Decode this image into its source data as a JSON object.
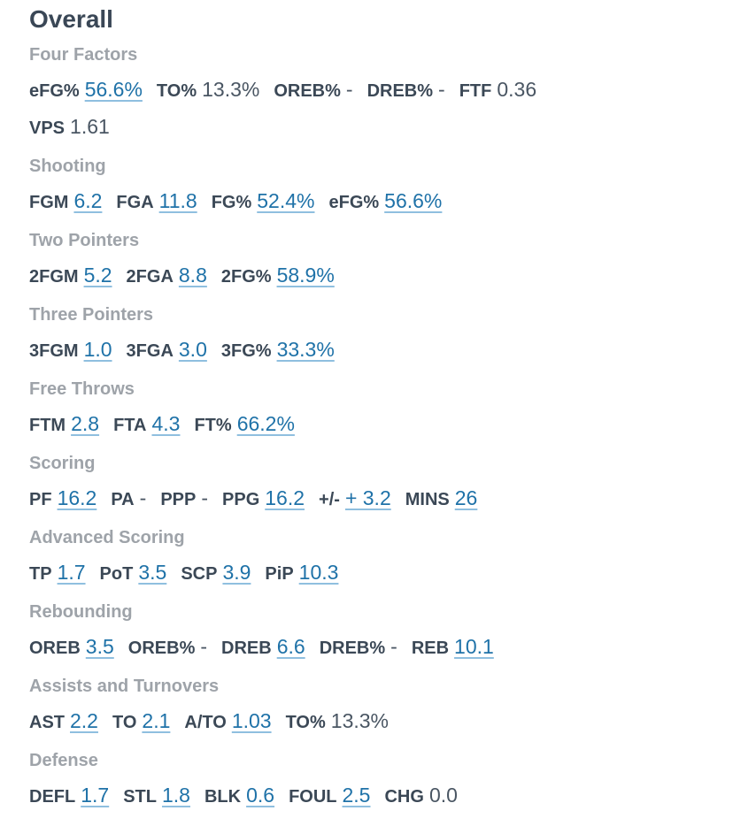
{
  "title": "Overall",
  "sections": [
    {
      "heading": "Four Factors",
      "rows": [
        [
          {
            "label": "eFG%",
            "value": "56.6%",
            "link": true
          },
          {
            "label": "TO%",
            "value": "13.3%",
            "link": false
          },
          {
            "label": "OREB%",
            "value": "-",
            "link": false
          },
          {
            "label": "DREB%",
            "value": "-",
            "link": false
          },
          {
            "label": "FTF",
            "value": "0.36",
            "link": false
          }
        ],
        [
          {
            "label": "VPS",
            "value": "1.61",
            "link": false
          }
        ]
      ]
    },
    {
      "heading": "Shooting",
      "rows": [
        [
          {
            "label": "FGM",
            "value": "6.2",
            "link": true
          },
          {
            "label": "FGA",
            "value": "11.8",
            "link": true
          },
          {
            "label": "FG%",
            "value": "52.4%",
            "link": true
          },
          {
            "label": "eFG%",
            "value": "56.6%",
            "link": true
          }
        ]
      ]
    },
    {
      "heading": "Two Pointers",
      "rows": [
        [
          {
            "label": "2FGM",
            "value": "5.2",
            "link": true
          },
          {
            "label": "2FGA",
            "value": "8.8",
            "link": true
          },
          {
            "label": "2FG%",
            "value": "58.9%",
            "link": true
          }
        ]
      ]
    },
    {
      "heading": "Three Pointers",
      "rows": [
        [
          {
            "label": "3FGM",
            "value": "1.0",
            "link": true
          },
          {
            "label": "3FGA",
            "value": "3.0",
            "link": true
          },
          {
            "label": "3FG%",
            "value": "33.3%",
            "link": true
          }
        ]
      ]
    },
    {
      "heading": "Free Throws",
      "rows": [
        [
          {
            "label": "FTM",
            "value": "2.8",
            "link": true
          },
          {
            "label": "FTA",
            "value": "4.3",
            "link": true
          },
          {
            "label": "FT%",
            "value": "66.2%",
            "link": true
          }
        ]
      ]
    },
    {
      "heading": "Scoring",
      "rows": [
        [
          {
            "label": "PF",
            "value": "16.2",
            "link": true
          },
          {
            "label": "PA",
            "value": "-",
            "link": false
          },
          {
            "label": "PPP",
            "value": "-",
            "link": false
          },
          {
            "label": "PPG",
            "value": "16.2",
            "link": true
          },
          {
            "label": "+/-",
            "value": "+ 3.2",
            "link": true
          },
          {
            "label": "MINS",
            "value": "26",
            "link": true
          }
        ]
      ]
    },
    {
      "heading": "Advanced Scoring",
      "rows": [
        [
          {
            "label": "TP",
            "value": "1.7",
            "link": true
          },
          {
            "label": "PoT",
            "value": "3.5",
            "link": true
          },
          {
            "label": "SCP",
            "value": "3.9",
            "link": true
          },
          {
            "label": "PiP",
            "value": "10.3",
            "link": true
          }
        ]
      ]
    },
    {
      "heading": "Rebounding",
      "rows": [
        [
          {
            "label": "OREB",
            "value": "3.5",
            "link": true
          },
          {
            "label": "OREB%",
            "value": "-",
            "link": false
          },
          {
            "label": "DREB",
            "value": "6.6",
            "link": true
          },
          {
            "label": "DREB%",
            "value": "-",
            "link": false
          },
          {
            "label": "REB",
            "value": "10.1",
            "link": true
          }
        ]
      ]
    },
    {
      "heading": "Assists and Turnovers",
      "rows": [
        [
          {
            "label": "AST",
            "value": "2.2",
            "link": true
          },
          {
            "label": "TO",
            "value": "2.1",
            "link": true
          },
          {
            "label": "A/TO",
            "value": "1.03",
            "link": true
          },
          {
            "label": "TO%",
            "value": "13.3%",
            "link": false
          }
        ]
      ]
    },
    {
      "heading": "Defense",
      "rows": [
        [
          {
            "label": "DEFL",
            "value": "1.7",
            "link": true
          },
          {
            "label": "STL",
            "value": "1.8",
            "link": true
          },
          {
            "label": "BLK",
            "value": "0.6",
            "link": true
          },
          {
            "label": "FOUL",
            "value": "2.5",
            "link": true
          },
          {
            "label": "CHG",
            "value": "0.0",
            "link": false
          }
        ]
      ]
    }
  ]
}
